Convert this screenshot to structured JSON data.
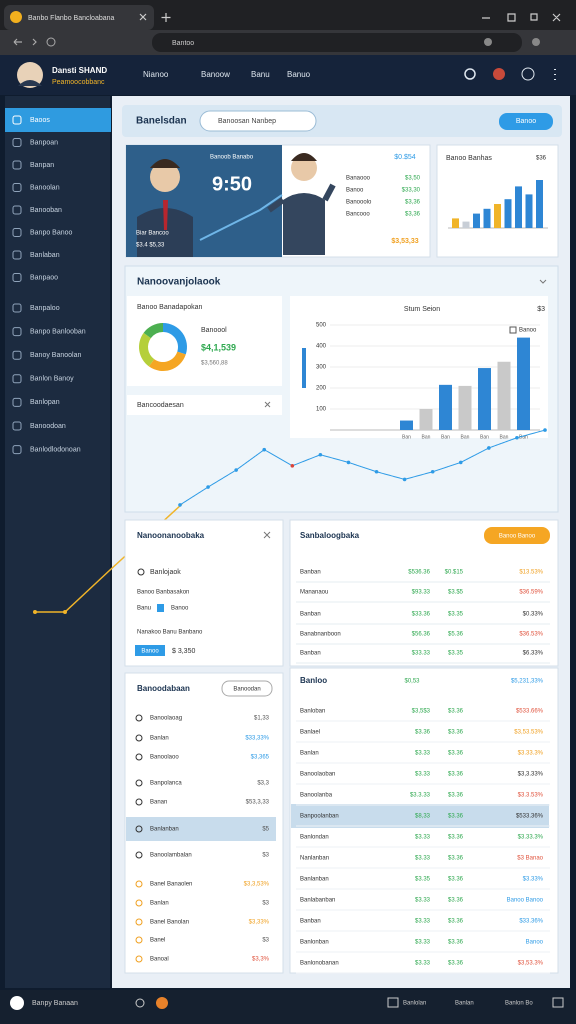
{
  "browser": {
    "tab_title": "Banbo Flanbo Bancloabana",
    "url": "Bantoo"
  },
  "header": {
    "user_name": "Dansti SHAND",
    "user_role": "Peamoocobbanc",
    "nav": [
      "Nianoo",
      "Banoow",
      "Banu",
      "Banuo"
    ]
  },
  "sidebar": {
    "groups": [
      [
        "Baoos",
        "Banpoan",
        "Banpan",
        "Banoolan",
        "Banooban",
        "Banpo Banoo",
        "Banlaban",
        "Banpaoo"
      ],
      [
        "Banpaloo",
        "Banpo Banlooban",
        "Banoy Banoolan",
        "Banlon Banoy",
        "Banlopan",
        "Banoodoan",
        "Banlodlodonoan"
      ]
    ]
  },
  "banner": {
    "title": "Banelsdan",
    "search": "Banoosan Nanbep",
    "button": "Banoo"
  },
  "hero": {
    "caption": "Banoob Banabo",
    "time": "9:50",
    "footer_name": "Biar Bancoo",
    "footer_value": "$3.4 $5,33",
    "top_value": "$0.$54",
    "rows": [
      [
        "Banaooo",
        "$3,50"
      ],
      [
        "Banoo",
        "$33,30"
      ],
      [
        "Banooolo",
        "$3,36"
      ],
      [
        "Bancooo",
        "$3,36"
      ]
    ],
    "total": "$3,53,33"
  },
  "mini_chart": {
    "title": "Banoo Banhas",
    "badge": "$36",
    "values": [
      12,
      8,
      18,
      24,
      30,
      36,
      52,
      42,
      60
    ],
    "colors": [
      "#f0b429",
      "#c8ced6",
      "#2e86d4",
      "#2e86d4",
      "#f0b429",
      "#2e86d4",
      "#2e86d4",
      "#2e86d4",
      "#2e86d4"
    ],
    "ylim": [
      0,
      70
    ]
  },
  "overview": {
    "title": "Nanoovanjolaook"
  },
  "donut": {
    "title": "Banoo Banadapokan",
    "label": "Banoool",
    "value": "$4,1,539",
    "sub_value": "$3,560,88",
    "values": [
      30,
      30,
      25,
      15
    ],
    "colors": [
      "#2e9be6",
      "#f5a623",
      "#b5cf3a",
      "#4caf50"
    ]
  },
  "bar_chart": {
    "title": "Stum Seion",
    "badge": "$3",
    "legend": "Banoo",
    "categories": [
      "Ban",
      "Ban",
      "Ban",
      "Ban",
      "Ban",
      "Ban",
      "Ban"
    ],
    "values": [
      45,
      100,
      215,
      210,
      295,
      325,
      440
    ],
    "colors": [
      "#2e86d4",
      "#c9c9c9",
      "#2e86d4",
      "#c9c9c9",
      "#2e86d4",
      "#c9c9c9",
      "#2e86d4"
    ],
    "ylim": [
      0,
      500
    ],
    "yticks": [
      100,
      200,
      300,
      400,
      500
    ]
  },
  "line_chart": {
    "title": "Bancoodaesan",
    "values": [
      6,
      27,
      47,
      71,
      52,
      65,
      56,
      45,
      36,
      45,
      56,
      73,
      85,
      94
    ],
    "ylim": [
      0,
      100
    ],
    "color": "#2e9be6"
  },
  "actions": {
    "title": "Nanoonanoobaka",
    "rows": [
      "Banlojaok",
      "Banoo Banbasakon",
      "Nanakoo Banu Banbano"
    ],
    "field_label": "Banu",
    "field_value": "Banoo",
    "button": "Banoo",
    "amount": "$ 3,350"
  },
  "summary": {
    "title": "Sanbaloogbaka",
    "button": "Banoo Banoo",
    "rows": [
      [
        "Banban",
        "$536.36",
        "$0.$15",
        "$13.53%"
      ],
      [
        "Mananaou",
        "$93.33",
        "$3.$5",
        "$36.59%"
      ],
      [
        "Banban",
        "$33.36",
        "$3.35",
        "$0.33%"
      ],
      [
        "Banabnanboon",
        "$56.36",
        "$5.36",
        "$36.53%"
      ],
      [
        "Banban",
        "$33.33",
        "$3.35",
        "$6.33%"
      ]
    ],
    "last_colors": [
      "#f0a020",
      "#e0533d",
      "#333333",
      "#e0533d",
      "#333333"
    ]
  },
  "list": {
    "title": "Banoodabaan",
    "search": "Banoodan",
    "rows": [
      [
        "Banoolaoag",
        "$1,33"
      ],
      [
        "Banlan",
        "$33,33%"
      ],
      [
        "Banoolaoo",
        "$3,365"
      ],
      [
        "Banpolanca",
        "$3,3"
      ],
      [
        "Banan",
        "$53,3,33"
      ],
      [
        "Banlanban",
        "$5"
      ],
      [
        "Banoolambalan",
        "$3"
      ],
      [
        "Banel Banaolen",
        "$3,3,53%"
      ],
      [
        "Banlan",
        "$3"
      ],
      [
        "Banel Banolan",
        "$3,33%"
      ],
      [
        "Banel",
        "$3"
      ],
      [
        "Banoal",
        "$3,3%"
      ]
    ],
    "value_colors": [
      "#555555",
      "#2e9be6",
      "#2e9be6",
      "#555555",
      "#555555",
      "#555555",
      "#555555",
      "#f0a020",
      "#555555",
      "#f0a020",
      "#555555",
      "#e0533d"
    ],
    "highlight": 5
  },
  "ledger": {
    "title": "Banloo",
    "header_value": "$0,53",
    "header_total": "$5,231,33%",
    "rows": [
      [
        "Banloban",
        "$3,5$3",
        "$3.36",
        "$533.66%"
      ],
      [
        "Banlael",
        "$3.36",
        "$3.36",
        "$3,53.53%"
      ],
      [
        "Banlan",
        "$3.33",
        "$3.36",
        "$3.33.3%"
      ],
      [
        "Banoolaoban",
        "$3.33",
        "$3.36",
        "$3,3.33%"
      ],
      [
        "Banoolanba",
        "$3.3.33",
        "$3.36",
        "$3.3.53%"
      ],
      [
        "Banpoolanban",
        "$8,33",
        "$3.36",
        "$533.36%"
      ],
      [
        "Banlondan",
        "$3.33",
        "$3.36",
        "$3.33.3%"
      ],
      [
        "Nanlanban",
        "$3.33",
        "$3.36",
        "$3 Banao"
      ],
      [
        "Banlanban",
        "$3.35",
        "$3.36",
        "$3.33%"
      ],
      [
        "Banlabanban",
        "$3.33",
        "$3.36",
        "Banoo Banoo"
      ],
      [
        "Banban",
        "$3.33",
        "$3.36",
        "$33.36%"
      ],
      [
        "Banlonban",
        "$3.33",
        "$3.36",
        "Banoo"
      ],
      [
        "Banlonobanan",
        "$3.33",
        "$3.36",
        "$3,53.3%"
      ]
    ],
    "last_colors": [
      "#e0533d",
      "#f0a020",
      "#f0a020",
      "#333333",
      "#e0533d",
      "#333333",
      "#2ea84f",
      "#e0533d",
      "#2e9be6",
      "#2e9be6",
      "#2e9be6",
      "#2e9be6",
      "#e0533d"
    ],
    "highlight": 5
  },
  "footer": {
    "title": "Banpy Banaan",
    "items": [
      "Banlolan",
      "Banlan",
      "Banlon Bo"
    ]
  }
}
